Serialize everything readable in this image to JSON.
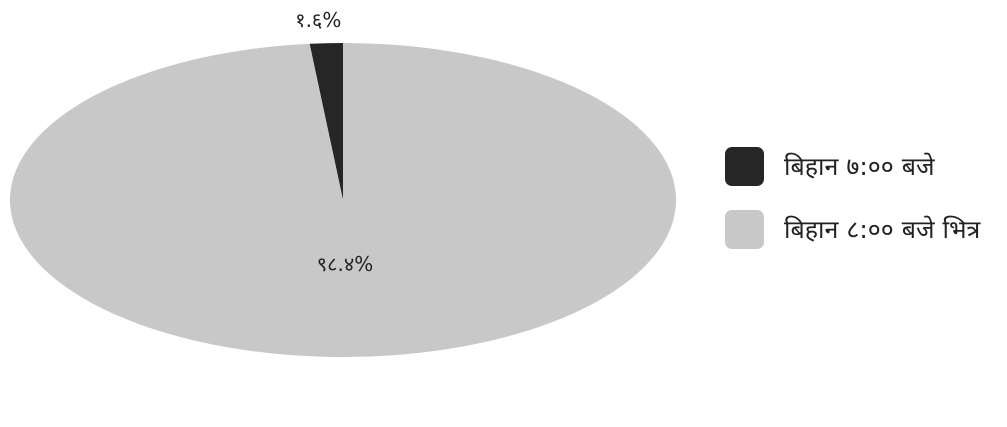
{
  "chart_data": {
    "type": "pie",
    "style": "3d",
    "categories": [
      "बिहान ७:०० बजे",
      "बिहान ८:०० बजे भित्र"
    ],
    "values": [
      1.6,
      98.4
    ],
    "value_labels": [
      "१.६%",
      "९८.४%"
    ],
    "colors": [
      "#262626",
      "#c8c8c8"
    ],
    "side_colors": [
      "#3a3a3a",
      "#707070"
    ],
    "legend_position": "right"
  }
}
